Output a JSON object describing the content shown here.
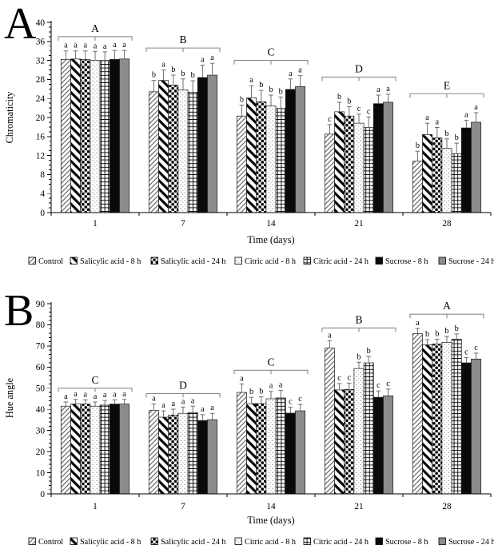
{
  "figure_title": "Chromaticity and Hue angle bar charts",
  "colors": {
    "background": "#ffffff",
    "axis": "#000000",
    "bar_black": "#0a0a0a",
    "bar_gray": "#8c8c8c",
    "bracket": "#8a8a8a",
    "error_bar": "#6e6e6e"
  },
  "legend": {
    "items": [
      {
        "label": "Control",
        "pattern": "diagonal-hatch-light"
      },
      {
        "label": "Salicylic acid - 8 h",
        "pattern": "diagonal-stripes-bold"
      },
      {
        "label": "Salicylic acid - 24 h",
        "pattern": "polka-dots-black"
      },
      {
        "label": "Citric acid - 8 h",
        "pattern": "stipple-dots"
      },
      {
        "label": "Citric acid - 24 h",
        "pattern": "grid-check"
      },
      {
        "label": "Sucrose - 8 h",
        "pattern": "solid-black"
      },
      {
        "label": "Sucrose - 24 h",
        "pattern": "solid-gray"
      }
    ]
  },
  "chart_data": [
    {
      "type": "bar",
      "panel_label": "A",
      "title": "",
      "xlabel": "Time (days)",
      "ylabel": "Chromaticity",
      "ylim": [
        0,
        40
      ],
      "ytick_major": 4,
      "ytick_minor": 1,
      "grid": false,
      "legend_position": "bottom",
      "categories": [
        "1",
        "7",
        "14",
        "21",
        "28"
      ],
      "series": [
        {
          "name": "Control",
          "pattern": "diagonal-hatch-light",
          "values": [
            32.2,
            25.4,
            20.3,
            16.5,
            10.8
          ],
          "errors": [
            1.8,
            2.4,
            2.3,
            2.0,
            2.1
          ],
          "letters": [
            "a",
            "b",
            "b",
            "c",
            "b"
          ]
        },
        {
          "name": "Salicylic acid - 8 h",
          "pattern": "diagonal-stripes-bold",
          "values": [
            32.3,
            27.8,
            24.1,
            21.2,
            16.4
          ],
          "errors": [
            1.7,
            2.2,
            2.6,
            2.0,
            2.4
          ],
          "letters": [
            "a",
            "a",
            "a",
            "b",
            "a"
          ]
        },
        {
          "name": "Salicylic acid - 24 h",
          "pattern": "polka-dots-black",
          "values": [
            32.2,
            26.8,
            23.3,
            20.3,
            15.7
          ],
          "errors": [
            1.8,
            2.1,
            2.4,
            2.0,
            2.2
          ],
          "letters": [
            "a",
            "b",
            "b",
            "b",
            "a"
          ]
        },
        {
          "name": "Citric acid - 8 h",
          "pattern": "stipple-dots",
          "values": [
            32.0,
            25.8,
            22.4,
            18.8,
            13.5
          ],
          "errors": [
            1.9,
            2.3,
            2.3,
            1.9,
            2.0
          ],
          "letters": [
            "a",
            "b",
            "b",
            "c",
            "b"
          ]
        },
        {
          "name": "Citric acid - 24 h",
          "pattern": "grid-check",
          "values": [
            32.0,
            25.3,
            21.9,
            17.9,
            12.4
          ],
          "errors": [
            1.8,
            2.4,
            2.4,
            2.2,
            2.2
          ],
          "letters": [
            "a",
            "b",
            "b",
            "c",
            "b"
          ]
        },
        {
          "name": "Sucrose - 8 h",
          "pattern": "solid-black",
          "values": [
            32.2,
            28.4,
            25.9,
            22.9,
            17.8
          ],
          "errors": [
            1.9,
            2.6,
            2.2,
            1.8,
            1.6
          ],
          "letters": [
            "a",
            "a",
            "a",
            "a",
            "a"
          ]
        },
        {
          "name": "Sucrose - 24 h",
          "pattern": "solid-gray",
          "values": [
            32.3,
            28.9,
            26.5,
            23.2,
            19.0
          ],
          "errors": [
            1.8,
            2.5,
            2.3,
            1.7,
            2.0
          ],
          "letters": [
            "a",
            "a",
            "a",
            "a",
            "a"
          ]
        }
      ],
      "group_brackets": [
        {
          "label": "A",
          "y": 37.0
        },
        {
          "label": "B",
          "y": 34.6
        },
        {
          "label": "C",
          "y": 32.0
        },
        {
          "label": "D",
          "y": 28.5
        },
        {
          "label": "E",
          "y": 25.0
        }
      ]
    },
    {
      "type": "bar",
      "panel_label": "B",
      "title": "",
      "xlabel": "Time (days)",
      "ylabel": "Hue angle",
      "ylim": [
        0,
        90
      ],
      "ytick_major": 10,
      "ytick_minor": 2,
      "grid": false,
      "legend_position": "bottom",
      "categories": [
        "1",
        "7",
        "14",
        "21",
        "28"
      ],
      "series": [
        {
          "name": "Control",
          "pattern": "diagonal-hatch-light",
          "values": [
            41.5,
            39.5,
            48.0,
            69.0,
            75.8
          ],
          "errors": [
            2.0,
            3.0,
            4.0,
            3.5,
            2.5
          ],
          "letters": [
            "a",
            "a",
            "a",
            "a",
            "a"
          ]
        },
        {
          "name": "Salicylic acid - 8 h",
          "pattern": "diagonal-stripes-bold",
          "values": [
            42.5,
            36.3,
            42.7,
            49.2,
            70.5
          ],
          "errors": [
            2.2,
            3.0,
            3.0,
            3.0,
            2.5
          ],
          "letters": [
            "a",
            "a",
            "b",
            "c",
            "b"
          ]
        },
        {
          "name": "Salicylic acid - 24 h",
          "pattern": "polka-dots-black",
          "values": [
            42.5,
            37.3,
            42.7,
            49.4,
            70.9
          ],
          "errors": [
            2.0,
            2.8,
            3.2,
            3.0,
            2.3
          ],
          "letters": [
            "a",
            "a",
            "b",
            "c",
            "b"
          ]
        },
        {
          "name": "Citric acid - 8 h",
          "pattern": "stipple-dots",
          "values": [
            41.5,
            38.1,
            45.0,
            59.3,
            71.7
          ],
          "errors": [
            2.0,
            3.0,
            3.5,
            3.0,
            2.8
          ],
          "letters": [
            "a",
            "a",
            "a",
            "b",
            "b"
          ]
        },
        {
          "name": "Citric acid - 24 h",
          "pattern": "grid-check",
          "values": [
            42.0,
            38.5,
            45.4,
            62.0,
            73.2
          ],
          "errors": [
            2.2,
            3.0,
            3.5,
            3.0,
            2.5
          ],
          "letters": [
            "a",
            "a",
            "a",
            "b",
            "b"
          ]
        },
        {
          "name": "Sucrose - 8 h",
          "pattern": "solid-black",
          "values": [
            42.5,
            34.7,
            38.2,
            45.7,
            62.0
          ],
          "errors": [
            2.0,
            2.8,
            2.8,
            3.0,
            2.5
          ],
          "letters": [
            "a",
            "a",
            "c",
            "c",
            "c"
          ]
        },
        {
          "name": "Sucrose - 24 h",
          "pattern": "solid-gray",
          "values": [
            42.5,
            35.1,
            39.3,
            46.4,
            63.8
          ],
          "errors": [
            2.2,
            3.0,
            3.0,
            3.2,
            2.8
          ],
          "letters": [
            "a",
            "a",
            "c",
            "c",
            "c"
          ]
        }
      ],
      "group_brackets": [
        {
          "label": "C",
          "y": 50.0
        },
        {
          "label": "D",
          "y": 47.5
        },
        {
          "label": "C",
          "y": 58.5
        },
        {
          "label": "B",
          "y": 78.5
        },
        {
          "label": "A",
          "y": 85.0
        }
      ]
    }
  ]
}
